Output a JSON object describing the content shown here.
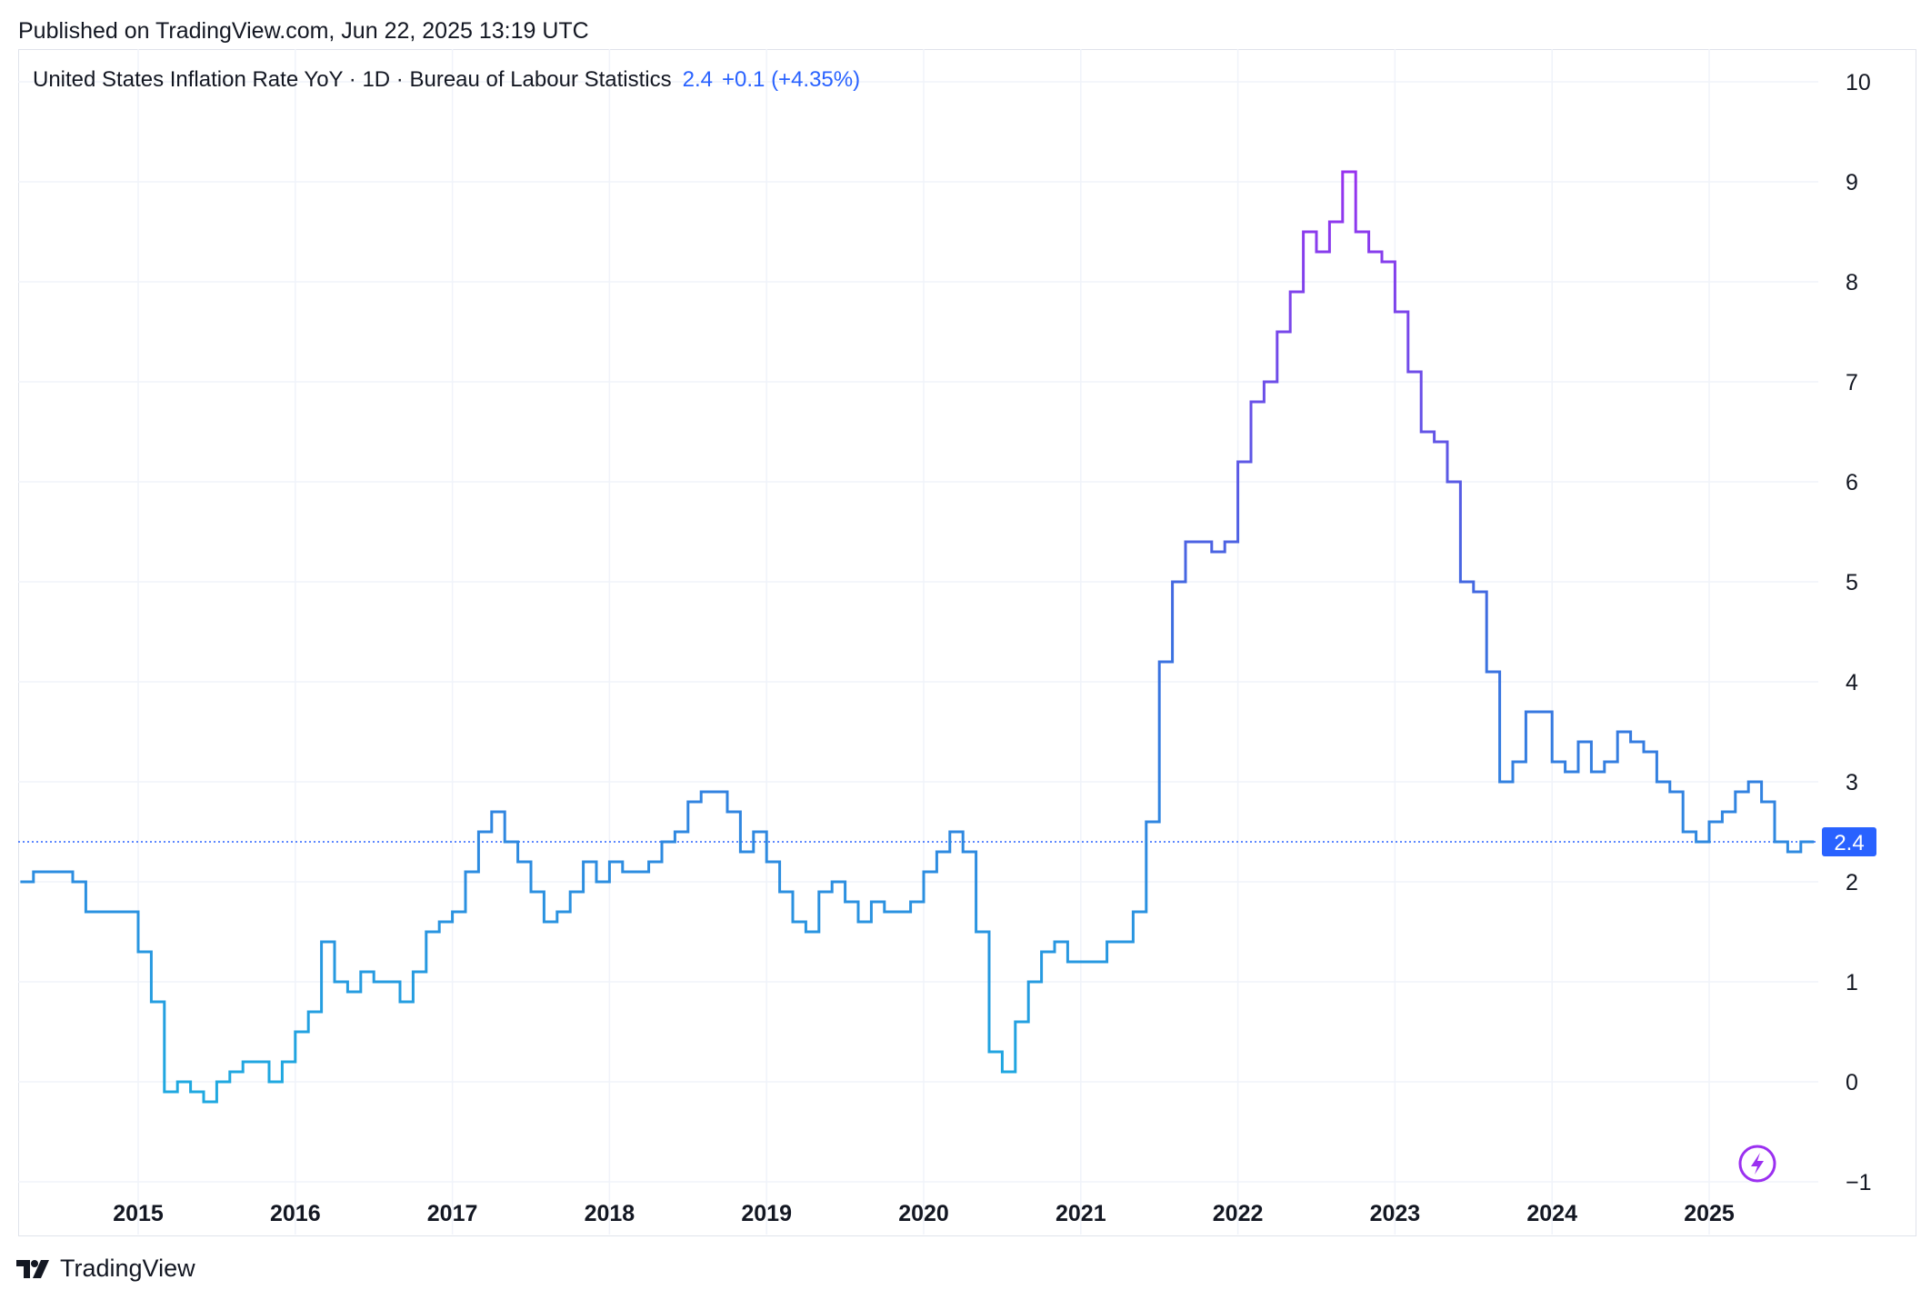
{
  "header": {
    "published": "Published on TradingView.com, Jun 22, 2025 13:19 UTC"
  },
  "legend": {
    "symbol": "United States Inflation Rate YoY · 1D · Bureau of Labour Statistics",
    "last_value": "2.4",
    "change": "+0.1 (+4.35%)"
  },
  "footer": {
    "brand": "TradingView"
  },
  "colors": {
    "line_low": "#1fa8e0",
    "line_mid": "#3d6ce0",
    "line_high": "#9b30f0",
    "accent": "#2962ff",
    "grid": "#f0f3fa"
  },
  "icons": {
    "logo": "tradingview-logo-icon",
    "snapshot": "lightning-icon"
  },
  "chart_data": {
    "type": "line",
    "step": true,
    "title": "United States Inflation Rate YoY",
    "xlabel": "",
    "ylabel": "",
    "ylim": [
      -1,
      10
    ],
    "xlim": [
      2014.25,
      2025.92
    ],
    "grid": true,
    "y_axis_position": "right",
    "y_ticks": [
      -1,
      0,
      1,
      2,
      3,
      4,
      5,
      6,
      7,
      8,
      9,
      10
    ],
    "y_tick_labels": [
      "−1",
      "0",
      "1",
      "2",
      "3",
      "4",
      "5",
      "6",
      "7",
      "8",
      "9",
      "10"
    ],
    "x_ticks": [
      2015,
      2016,
      2017,
      2018,
      2019,
      2020,
      2021,
      2022,
      2023,
      2024,
      2025
    ],
    "x_tick_labels": [
      "2015",
      "2016",
      "2017",
      "2018",
      "2019",
      "2020",
      "2021",
      "2022",
      "2023",
      "2024",
      "2025"
    ],
    "last_value_label": "2.4",
    "last_value": 2.4,
    "series": [
      {
        "name": "United States Inflation Rate YoY",
        "start": 2014.25,
        "step_months": 1,
        "values": [
          2.0,
          2.1,
          2.1,
          2.1,
          2.0,
          1.7,
          1.7,
          1.7,
          1.7,
          1.3,
          0.8,
          -0.1,
          0.0,
          -0.1,
          -0.2,
          0.0,
          0.1,
          0.2,
          0.2,
          0.0,
          0.2,
          0.5,
          0.7,
          1.4,
          1.0,
          0.9,
          1.1,
          1.0,
          1.0,
          0.8,
          1.1,
          1.5,
          1.6,
          1.7,
          2.1,
          2.5,
          2.7,
          2.4,
          2.2,
          1.9,
          1.6,
          1.7,
          1.9,
          2.2,
          2.0,
          2.2,
          2.1,
          2.1,
          2.2,
          2.4,
          2.5,
          2.8,
          2.9,
          2.9,
          2.7,
          2.3,
          2.5,
          2.2,
          1.9,
          1.6,
          1.5,
          1.9,
          2.0,
          1.8,
          1.6,
          1.8,
          1.7,
          1.7,
          1.8,
          2.1,
          2.3,
          2.5,
          2.3,
          1.5,
          0.3,
          0.1,
          0.6,
          1.0,
          1.3,
          1.4,
          1.2,
          1.2,
          1.2,
          1.4,
          1.4,
          1.7,
          2.6,
          4.2,
          5.0,
          5.4,
          5.4,
          5.3,
          5.4,
          6.2,
          6.8,
          7.0,
          7.5,
          7.9,
          8.5,
          8.3,
          8.6,
          9.1,
          8.5,
          8.3,
          8.2,
          7.7,
          7.1,
          6.5,
          6.4,
          6.0,
          5.0,
          4.9,
          4.1,
          3.0,
          3.2,
          3.7,
          3.7,
          3.2,
          3.1,
          3.4,
          3.1,
          3.2,
          3.5,
          3.4,
          3.3,
          3.0,
          2.9,
          2.5,
          2.4,
          2.6,
          2.7,
          2.9,
          3.0,
          2.8,
          2.4,
          2.3,
          2.4
        ]
      }
    ]
  }
}
